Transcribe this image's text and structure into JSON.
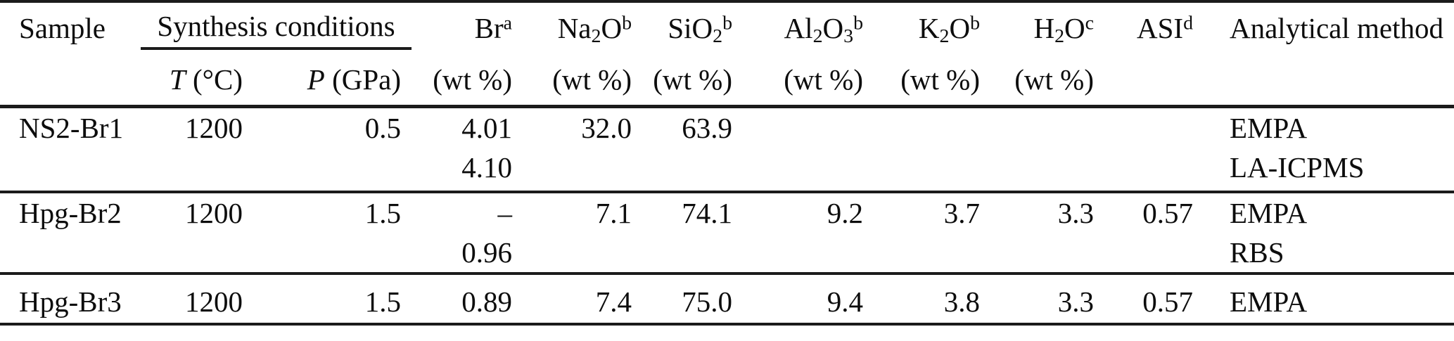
{
  "header": {
    "sample": "Sample",
    "synthesis": "Synthesis conditions",
    "t_symbol": "T",
    "t_unit": " (°C)",
    "p_symbol": "P",
    "p_unit": " (GPa)",
    "chem_columns": [
      {
        "name": "br",
        "parts": [
          [
            "Br",
            "n"
          ]
        ],
        "sup": "a",
        "unit": "(wt %)"
      },
      {
        "name": "na2o",
        "parts": [
          [
            "Na",
            "n"
          ],
          [
            "2",
            "s"
          ],
          [
            "O",
            "n"
          ]
        ],
        "sup": "b",
        "unit": "(wt %)"
      },
      {
        "name": "sio2",
        "parts": [
          [
            "SiO",
            "n"
          ],
          [
            "2",
            "s"
          ]
        ],
        "sup": "b",
        "unit": "(wt %)"
      },
      {
        "name": "al2o3",
        "parts": [
          [
            "Al",
            "n"
          ],
          [
            "2",
            "s"
          ],
          [
            "O",
            "n"
          ],
          [
            "3",
            "s"
          ]
        ],
        "sup": "b",
        "unit": "(wt %)"
      },
      {
        "name": "k2o",
        "parts": [
          [
            "K",
            "n"
          ],
          [
            "2",
            "s"
          ],
          [
            "O",
            "n"
          ]
        ],
        "sup": "b",
        "unit": "(wt %)"
      },
      {
        "name": "h2o",
        "parts": [
          [
            "H",
            "n"
          ],
          [
            "2",
            "s"
          ],
          [
            "O",
            "n"
          ]
        ],
        "sup": "c",
        "unit": "(wt %)"
      }
    ],
    "asi": {
      "label": "ASI",
      "sup": "d"
    },
    "method": "Analytical method"
  },
  "rows": [
    {
      "sample": "NS2-Br1",
      "t": "1200",
      "p": "0.5",
      "values": {
        "br": [
          "4.01",
          "4.10"
        ],
        "na2o": [
          "32.0"
        ],
        "sio2": [
          "63.9"
        ],
        "al2o3": [],
        "k2o": [],
        "h2o": [],
        "asi": []
      },
      "method": [
        "EMPA",
        "LA-ICPMS"
      ]
    },
    {
      "sample": "Hpg-Br2",
      "t": "1200",
      "p": "1.5",
      "values": {
        "br": [
          "–",
          "0.96"
        ],
        "na2o": [
          "7.1"
        ],
        "sio2": [
          "74.1"
        ],
        "al2o3": [
          "9.2"
        ],
        "k2o": [
          "3.7"
        ],
        "h2o": [
          "3.3"
        ],
        "asi": [
          "0.57"
        ]
      },
      "method": [
        "EMPA",
        "RBS"
      ]
    },
    {
      "sample": "Hpg-Br3",
      "t": "1200",
      "p": "1.5",
      "values": {
        "br": [
          "0.89"
        ],
        "na2o": [
          "7.4"
        ],
        "sio2": [
          "75.0"
        ],
        "al2o3": [
          "9.4"
        ],
        "k2o": [
          "3.8"
        ],
        "h2o": [
          "3.3"
        ],
        "asi": [
          "0.57"
        ]
      },
      "method": [
        "EMPA"
      ]
    }
  ]
}
